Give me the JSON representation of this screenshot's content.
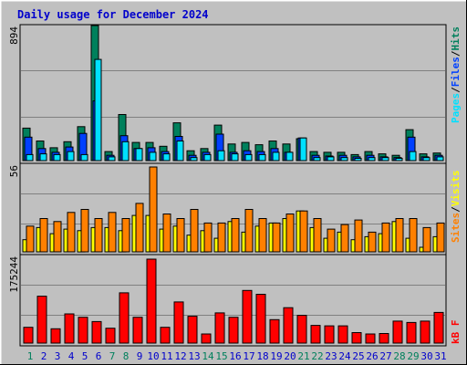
{
  "title": "Daily usage for December 2024",
  "colors": {
    "background": "#C0C0C0",
    "title": "#0000CC",
    "hits": "#00805C",
    "files": "#0040FF",
    "pages": "#00E0FF",
    "visits": "#FFFF00",
    "sites": "#FF8000",
    "kbytes": "#FF0000",
    "weekend_label": "#00805C",
    "weekday_label": "#0000CC"
  },
  "panels": {
    "top": {
      "max_label": "894",
      "legend": [
        "Pages",
        "Files",
        "Hits"
      ],
      "separator": "/"
    },
    "middle": {
      "max_label": "56",
      "legend": [
        "Sites",
        "Visits"
      ],
      "separator": "/"
    },
    "bottom": {
      "max_label": "175244",
      "legend": [
        "kB F"
      ]
    }
  },
  "chart_data": [
    {
      "type": "bar",
      "title": "Daily usage for December 2024",
      "categories": [
        "1",
        "2",
        "3",
        "4",
        "5",
        "6",
        "7",
        "8",
        "9",
        "10",
        "11",
        "12",
        "13",
        "14",
        "15",
        "16",
        "17",
        "18",
        "19",
        "20",
        "21",
        "22",
        "23",
        "24",
        "25",
        "26",
        "27",
        "28",
        "29",
        "30",
        "31"
      ],
      "ylim": [
        0,
        894
      ],
      "series": [
        {
          "name": "Hits",
          "values": [
            215,
            130,
            85,
            125,
            225,
            894,
            60,
            305,
            120,
            120,
            95,
            250,
            65,
            80,
            235,
            110,
            120,
            105,
            130,
            110,
            145,
            60,
            55,
            55,
            40,
            60,
            45,
            35,
            205,
            45,
            50
          ]
        },
        {
          "name": "Files",
          "values": [
            155,
            80,
            55,
            90,
            180,
            395,
            35,
            165,
            80,
            85,
            60,
            160,
            35,
            55,
            175,
            55,
            65,
            60,
            80,
            55,
            150,
            35,
            30,
            35,
            25,
            35,
            25,
            20,
            155,
            25,
            35
          ]
        },
        {
          "name": "Pages",
          "values": [
            40,
            45,
            40,
            60,
            40,
            670,
            25,
            125,
            80,
            55,
            45,
            130,
            20,
            40,
            65,
            45,
            40,
            40,
            55,
            55,
            150,
            20,
            25,
            20,
            15,
            20,
            20,
            15,
            60,
            20,
            25
          ]
        }
      ]
    },
    {
      "type": "bar",
      "categories": [
        "1",
        "2",
        "3",
        "4",
        "5",
        "6",
        "7",
        "8",
        "9",
        "10",
        "11",
        "12",
        "13",
        "14",
        "15",
        "16",
        "17",
        "18",
        "19",
        "20",
        "21",
        "22",
        "23",
        "24",
        "25",
        "26",
        "27",
        "28",
        "29",
        "30",
        "31"
      ],
      "ylim": [
        0,
        56
      ],
      "series": [
        {
          "name": "Visits",
          "values": [
            8,
            16,
            12,
            15,
            14,
            16,
            16,
            14,
            24,
            24,
            15,
            17,
            11,
            14,
            9,
            20,
            13,
            17,
            19,
            22,
            27,
            16,
            9,
            13,
            8,
            10,
            12,
            20,
            9,
            3,
            10
          ]
        },
        {
          "name": "Sites",
          "values": [
            17,
            22,
            20,
            26,
            28,
            22,
            26,
            22,
            32,
            56,
            25,
            22,
            28,
            19,
            19,
            22,
            28,
            22,
            19,
            25,
            27,
            22,
            15,
            18,
            21,
            13,
            19,
            22,
            22,
            16,
            19
          ]
        }
      ]
    },
    {
      "type": "bar",
      "categories": [
        "1",
        "2",
        "3",
        "4",
        "5",
        "6",
        "7",
        "8",
        "9",
        "10",
        "11",
        "12",
        "13",
        "14",
        "15",
        "16",
        "17",
        "18",
        "19",
        "20",
        "21",
        "22",
        "23",
        "24",
        "25",
        "26",
        "27",
        "28",
        "29",
        "30",
        "31"
      ],
      "ylim": [
        0,
        175244
      ],
      "series": [
        {
          "name": "kB F",
          "values": [
            33000,
            98000,
            30000,
            61000,
            54000,
            45000,
            31000,
            105000,
            54000,
            175244,
            33000,
            86000,
            56000,
            19000,
            63000,
            54000,
            110000,
            102000,
            49000,
            74000,
            58000,
            37000,
            36000,
            36000,
            22000,
            19000,
            20000,
            46000,
            43000,
            46000,
            64000
          ]
        }
      ]
    }
  ],
  "days": [
    "1",
    "2",
    "3",
    "4",
    "5",
    "6",
    "7",
    "8",
    "9",
    "10",
    "11",
    "12",
    "13",
    "14",
    "15",
    "16",
    "17",
    "18",
    "19",
    "20",
    "21",
    "22",
    "23",
    "24",
    "25",
    "26",
    "27",
    "28",
    "29",
    "30",
    "31"
  ],
  "weekend_days": [
    1,
    7,
    8,
    14,
    15,
    21,
    22,
    28,
    29
  ]
}
